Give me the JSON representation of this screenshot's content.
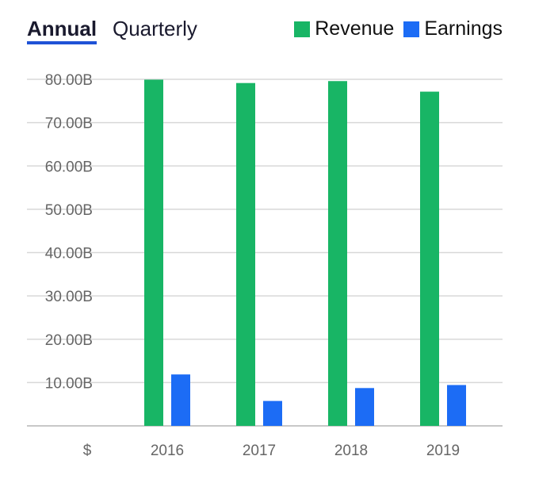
{
  "tabs": {
    "annual_label": "Annual",
    "quarterly_label": "Quarterly"
  },
  "legend": {
    "revenue_label": "Revenue",
    "earnings_label": "Earnings"
  },
  "colors": {
    "revenue": "#18b565",
    "earnings": "#1c6cf5",
    "accent": "#1f52d6",
    "grid": "#d8d8d8"
  },
  "chart_data": {
    "type": "bar",
    "categories": [
      "2016",
      "2017",
      "2018",
      "2019"
    ],
    "series": [
      {
        "name": "Revenue",
        "values": [
          79.92,
          79.14,
          79.59,
          77.15
        ]
      },
      {
        "name": "Earnings",
        "values": [
          11.87,
          5.75,
          8.73,
          9.43
        ]
      }
    ],
    "ylim": [
      0,
      80
    ],
    "yticks": [
      10,
      20,
      30,
      40,
      50,
      60,
      70,
      80
    ],
    "ytick_labels": [
      "10.00B",
      "20.00B",
      "30.00B",
      "40.00B",
      "50.00B",
      "60.00B",
      "70.00B",
      "80.00B"
    ],
    "y_origin_label": "$",
    "grid": true,
    "legend_position": "top-right"
  }
}
